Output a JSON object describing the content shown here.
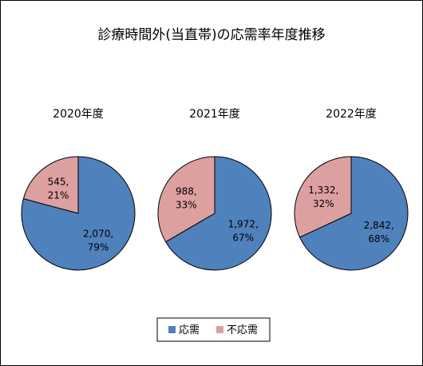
{
  "chart_data": {
    "type": "pie",
    "title": "診療時間外(当直帯)の応需率年度推移",
    "legend": {
      "placement": "bottom",
      "entries": [
        {
          "name": "応需",
          "color": "#4f81bd"
        },
        {
          "name": "不応需",
          "color": "#dda0a0"
        }
      ]
    },
    "pies": [
      {
        "title": "2020年度",
        "slices": [
          {
            "name": "応需",
            "value": 2070,
            "label_value": "2,070,",
            "label_pct": "79%"
          },
          {
            "name": "不応需",
            "value": 545,
            "label_value": "545,",
            "label_pct": "21%"
          }
        ]
      },
      {
        "title": "2021年度",
        "slices": [
          {
            "name": "応需",
            "value": 1972,
            "label_value": "1,972,",
            "label_pct": "67%"
          },
          {
            "name": "不応需",
            "value": 988,
            "label_value": "988,",
            "label_pct": "33%"
          }
        ]
      },
      {
        "title": "2022年度",
        "slices": [
          {
            "name": "応需",
            "value": 2842,
            "label_value": "2,842,",
            "label_pct": "68%"
          },
          {
            "name": "不応需",
            "value": 1332,
            "label_value": "1,332,",
            "label_pct": "32%"
          }
        ]
      }
    ]
  }
}
